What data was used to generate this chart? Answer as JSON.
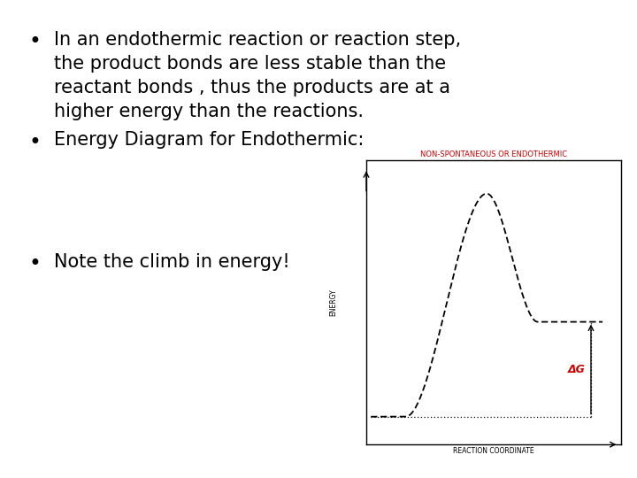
{
  "bg_color": "#ffffff",
  "bullet1_line1": "In an endothermic reaction or reaction step,",
  "bullet1_line2": "the product bonds are less stable than the",
  "bullet1_line3": "reactant bonds , thus the products are at a",
  "bullet1_line4": "higher energy than the reactions.",
  "bullet2": "Energy Diagram for Endothermic:",
  "bullet3": "Note the climb in energy!",
  "diagram_title": "NON-SPONTANEOUS OR ENDOTHERMIC",
  "diagram_xlabel": "REACTION COORDINATE",
  "diagram_ylabel": "ENERGY",
  "ag_label": "ΔG",
  "text_color": "#000000",
  "red_color": "#cc0000",
  "diagram_title_color": "#cc0000",
  "font_size_bullets": 15,
  "font_size_diagram": 5.5,
  "reactant_level": 0.08,
  "product_level": 0.42,
  "peak_level": 0.88
}
